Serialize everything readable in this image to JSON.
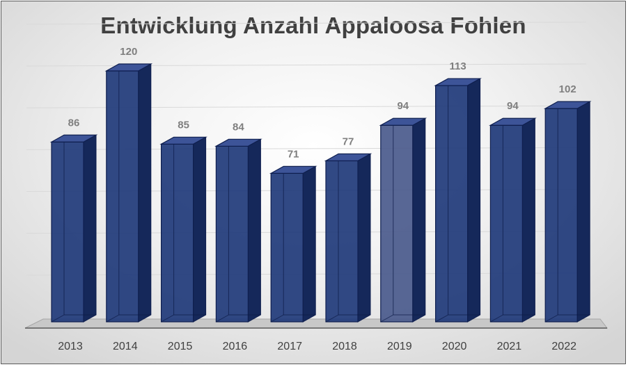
{
  "chart_data": {
    "type": "bar",
    "title": "Entwicklung Anzahl Appaloosa Fohlen",
    "categories": [
      "2013",
      "2014",
      "2015",
      "2016",
      "2017",
      "2018",
      "2019",
      "2020",
      "2021",
      "2022"
    ],
    "values": [
      86,
      120,
      85,
      84,
      71,
      77,
      94,
      113,
      94,
      102
    ],
    "xlabel": "",
    "ylabel": "",
    "ylim": [
      0,
      140
    ],
    "grid": true,
    "legend": "none",
    "bar_color": "#1f3a7a",
    "bar_edge_color": "#0f1f4f",
    "highlight_color": "#4a5a8c"
  }
}
